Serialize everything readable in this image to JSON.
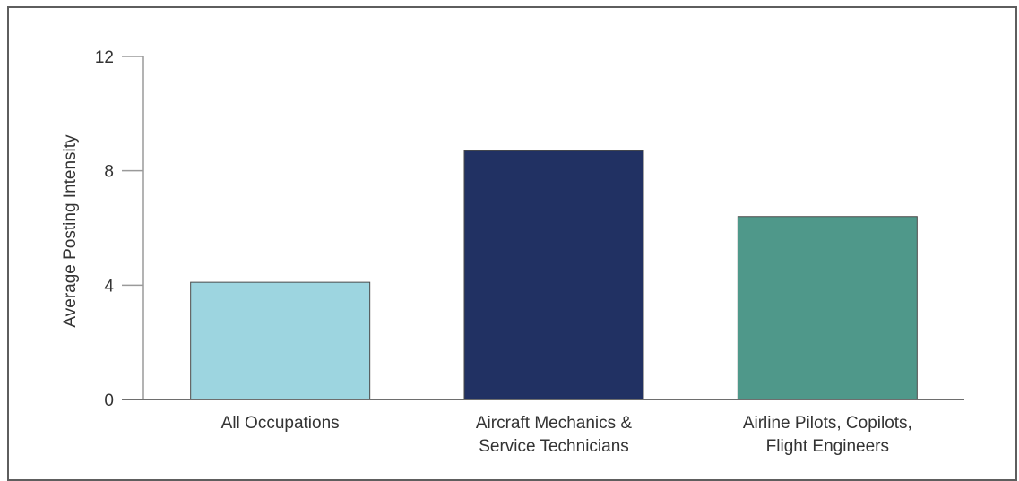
{
  "chart_data": {
    "type": "bar",
    "ylabel": "Average Posting Intensity",
    "xlabel": "",
    "ylim": [
      0,
      12
    ],
    "yticks": [
      0,
      4,
      8,
      12
    ],
    "grid": false,
    "categories": [
      [
        "All Occupations"
      ],
      [
        "Aircraft Mechanics &",
        "Service Technicians"
      ],
      [
        "Airline Pilots, Copilots,",
        "Flight Engineers"
      ]
    ],
    "values": [
      4.1,
      8.7,
      6.4
    ],
    "colors": [
      "#9dd5e0",
      "#213163",
      "#4f988a"
    ]
  }
}
